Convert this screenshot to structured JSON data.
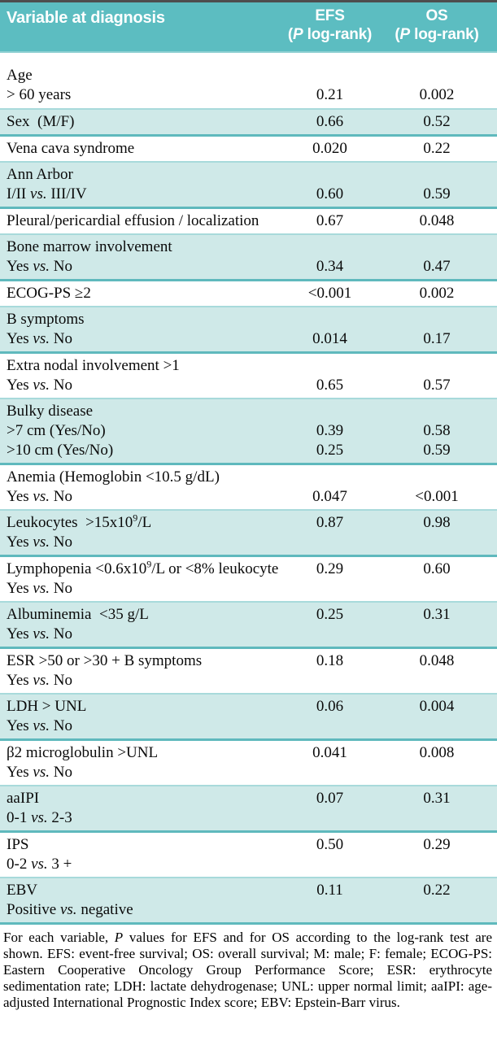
{
  "colors": {
    "top_rule": "#4e4e4e",
    "header_bg": "#5cbdc1",
    "header_rule": "#8fd0d2",
    "band_bg": "#cfe9e8",
    "band_rule_top": "#a8dadb",
    "band_rule_bottom": "#5fb9bd"
  },
  "table": {
    "header": {
      "variable": "Variable at diagnosis",
      "efs": [
        "EFS",
        "(P log-rank)"
      ],
      "os": [
        "OS",
        "(P log-rank)"
      ]
    },
    "rows": [
      {
        "band": false,
        "first": true,
        "lines": [
          {
            "label": "Age",
            "efs": "",
            "os": ""
          },
          {
            "label": "> 60 years",
            "efs": "0.21",
            "os": "0.002"
          }
        ]
      },
      {
        "band": true,
        "lines": [
          {
            "label": "Sex  (M/F)",
            "efs": "0.66",
            "os": "0.52"
          }
        ]
      },
      {
        "band": false,
        "lines": [
          {
            "label": "Vena cava syndrome",
            "efs": "0.020",
            "os": "0.22"
          }
        ]
      },
      {
        "band": true,
        "lines": [
          {
            "label": "Ann Arbor",
            "efs": "",
            "os": ""
          },
          {
            "label": "I/II vs. III/IV",
            "efs": "0.60",
            "os": "0.59"
          }
        ]
      },
      {
        "band": false,
        "lines": [
          {
            "label": "Pleural/pericardial effusion / localization",
            "efs": "0.67",
            "os": "0.048"
          }
        ]
      },
      {
        "band": true,
        "lines": [
          {
            "label": "Bone marrow involvement",
            "efs": "",
            "os": ""
          },
          {
            "label": "Yes vs. No",
            "efs": "0.34",
            "os": "0.47"
          }
        ]
      },
      {
        "band": false,
        "lines": [
          {
            "label": "ECOG-PS ≥2",
            "efs": "<0.001",
            "os": "0.002"
          }
        ]
      },
      {
        "band": true,
        "lines": [
          {
            "label": "B symptoms",
            "efs": "",
            "os": ""
          },
          {
            "label": "Yes vs. No",
            "efs": "0.014",
            "os": "0.17"
          }
        ]
      },
      {
        "band": false,
        "lines": [
          {
            "label": "Extra nodal involvement >1",
            "efs": "",
            "os": ""
          },
          {
            "label": "Yes vs. No",
            "efs": "0.65",
            "os": "0.57"
          }
        ]
      },
      {
        "band": true,
        "lines": [
          {
            "label": "Bulky disease",
            "efs": "",
            "os": ""
          },
          {
            "label": ">7 cm (Yes/No)",
            "efs": "0.39",
            "os": "0.58"
          },
          {
            "label": ">10 cm (Yes/No)",
            "efs": "0.25",
            "os": "0.59"
          }
        ]
      },
      {
        "band": false,
        "lines": [
          {
            "label": "Anemia (Hemoglobin <10.5 g/dL)",
            "efs": "",
            "os": ""
          },
          {
            "label": "Yes vs. No",
            "efs": "0.047",
            "os": "<0.001"
          }
        ]
      },
      {
        "band": true,
        "lines": [
          {
            "label": "Leukocytes  >15x10^9/L",
            "efs": "0.87",
            "os": "0.98"
          },
          {
            "label": "Yes vs. No",
            "efs": "",
            "os": ""
          }
        ]
      },
      {
        "band": false,
        "lines": [
          {
            "label": "Lymphopenia <0.6x10^9/L or <8% leukocyte",
            "efs": "0.29",
            "os": "0.60"
          },
          {
            "label": "Yes vs. No",
            "efs": "",
            "os": ""
          }
        ]
      },
      {
        "band": true,
        "lines": [
          {
            "label": "Albuminemia  <35 g/L",
            "efs": "0.25",
            "os": "0.31"
          },
          {
            "label": "Yes vs. No",
            "efs": "",
            "os": ""
          }
        ]
      },
      {
        "band": false,
        "lines": [
          {
            "label": "ESR >50 or >30 + B symptoms",
            "efs": "0.18",
            "os": "0.048"
          },
          {
            "label": "Yes vs. No",
            "efs": "",
            "os": ""
          }
        ]
      },
      {
        "band": true,
        "lines": [
          {
            "label": "LDH > UNL",
            "efs": "0.06",
            "os": "0.004"
          },
          {
            "label": "Yes vs. No",
            "efs": "",
            "os": ""
          }
        ]
      },
      {
        "band": false,
        "lines": [
          {
            "label": "β2 microglobulin >UNL",
            "efs": "0.041",
            "os": "0.008"
          },
          {
            "label": "Yes vs. No",
            "efs": "",
            "os": ""
          }
        ]
      },
      {
        "band": true,
        "lines": [
          {
            "label": "aaIPI",
            "efs": "0.07",
            "os": "0.31"
          },
          {
            "label": "0-1 vs. 2-3",
            "efs": "",
            "os": ""
          }
        ]
      },
      {
        "band": false,
        "lines": [
          {
            "label": "IPS",
            "efs": "0.50",
            "os": "0.29"
          },
          {
            "label": "0-2 vs. 3 +",
            "efs": "",
            "os": ""
          }
        ]
      },
      {
        "band": true,
        "lines": [
          {
            "label": "EBV",
            "efs": "0.11",
            "os": "0.22"
          },
          {
            "label": "Positive vs. negative",
            "efs": "",
            "os": ""
          }
        ]
      }
    ],
    "footnote": "For each variable, P values for EFS and for OS according to the log-rank test are shown. EFS: event-free survival; OS: overall survival; M: male; F: female; ECOG-PS: Eastern Cooperative Oncology Group Performance Score; ESR: erythrocyte sedimentation rate; LDH: lactate dehydrogenase; UNL: upper normal limit; aaIPI: age-adjusted International Prognostic Index score;  EBV: Epstein-Barr virus."
  }
}
